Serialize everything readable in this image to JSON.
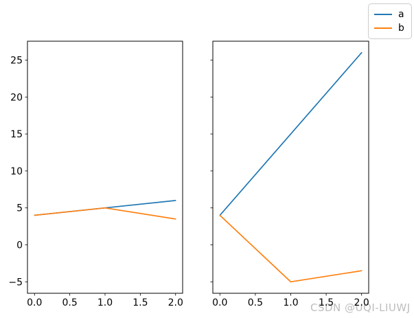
{
  "figure": {
    "background": "#ffffff"
  },
  "legend": {
    "items": [
      {
        "label": "a",
        "color": "#1f77b4"
      },
      {
        "label": "b",
        "color": "#ff7f0e"
      }
    ],
    "border_color": "#cccccc",
    "position": "figure top-right"
  },
  "watermark": {
    "text": "CSDN @UQI-LIUWJ",
    "color": "#bdbdbd"
  },
  "chart_data": {
    "type": "line",
    "x": [
      0,
      1,
      2
    ],
    "xlim": [
      -0.1,
      2.1
    ],
    "ylim": [
      -6.55,
      27.55
    ],
    "xticks": [
      0.0,
      0.5,
      1.0,
      1.5,
      2.0
    ],
    "yticks": [
      -5,
      0,
      5,
      10,
      15,
      20,
      25
    ],
    "grid": false,
    "shared_y": true,
    "legend_entries": [
      "a",
      "b"
    ],
    "legend_position": "upper right of figure",
    "axes": [
      {
        "name": "left",
        "show_ytick_labels": true,
        "series": [
          {
            "name": "a",
            "color": "#1f77b4",
            "values": [
              4,
              5,
              6
            ]
          },
          {
            "name": "b",
            "color": "#ff7f0e",
            "values": [
              4,
              5,
              3.5
            ]
          }
        ]
      },
      {
        "name": "right",
        "show_ytick_labels": false,
        "series": [
          {
            "name": "a",
            "color": "#1f77b4",
            "values": [
              4,
              15,
              26
            ]
          },
          {
            "name": "b",
            "color": "#ff7f0e",
            "values": [
              4,
              -5,
              -3.5
            ]
          }
        ]
      }
    ]
  }
}
